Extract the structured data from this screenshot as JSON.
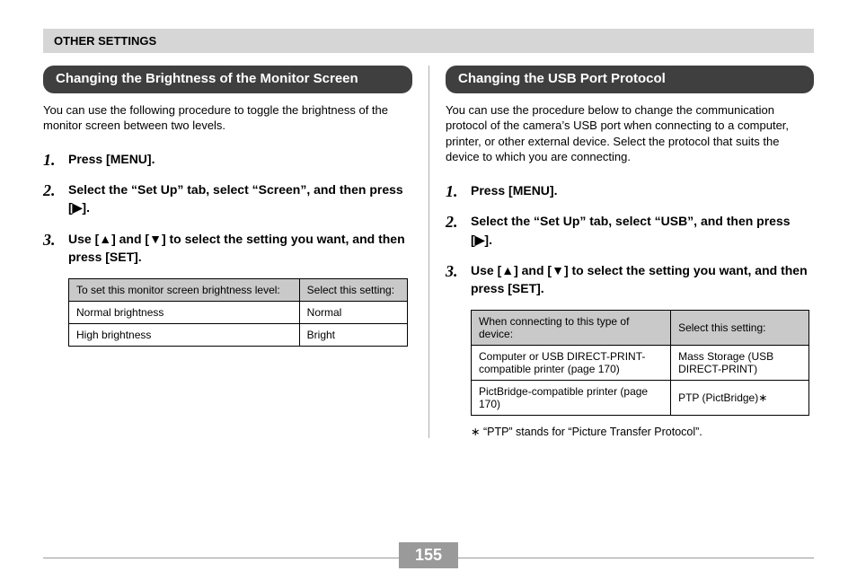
{
  "header": {
    "title": "OTHER SETTINGS"
  },
  "left": {
    "title": "Changing the Brightness of the Monitor Screen",
    "intro": "You can use the following procedure to toggle the brightness of the monitor screen between two levels.",
    "steps": [
      "Press [MENU].",
      "Select the “Set Up” tab, select “Screen”, and then press [▶].",
      "Use [▲] and [▼] to select the setting you want, and then press [SET]."
    ],
    "table": {
      "head": [
        "To set this monitor screen brightness level:",
        "Select this setting:"
      ],
      "rows": [
        [
          "Normal brightness",
          "Normal"
        ],
        [
          "High brightness",
          "Bright"
        ]
      ]
    }
  },
  "right": {
    "title": "Changing the USB Port Protocol",
    "intro": "You can use the procedure below to change the communication protocol of the camera’s USB port when connecting to a computer, printer, or other external device. Select the protocol that suits the device to which you are connecting.",
    "steps": [
      "Press [MENU].",
      "Select the “Set Up” tab, select “USB”, and then press [▶].",
      "Use [▲] and [▼] to select the setting you want, and then press [SET]."
    ],
    "table": {
      "head": [
        "When connecting to this type of device:",
        "Select this setting:"
      ],
      "rows": [
        [
          "Computer or USB DIRECT-PRINT-compatible printer (page 170)",
          "Mass Storage (USB DIRECT-PRINT)"
        ],
        [
          "PictBridge-compatible printer (page 170)",
          "PTP (PictBridge)∗"
        ]
      ]
    },
    "footnote": "∗ “PTP” stands for “Picture Transfer Protocol”."
  },
  "page_number": "155"
}
